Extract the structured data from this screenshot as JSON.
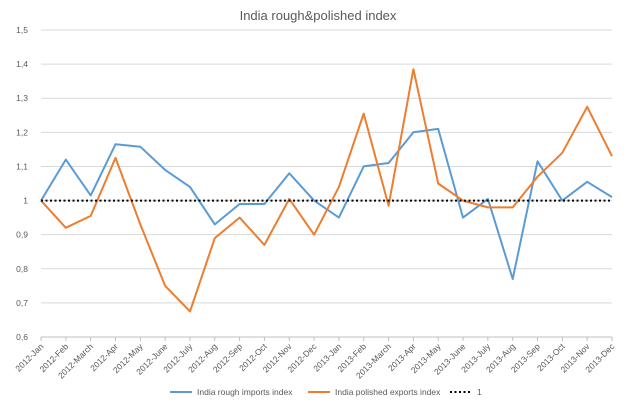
{
  "chart_data": {
    "type": "line",
    "title": "India rough&polished index",
    "categories": [
      "2012-Jan",
      "2012-Feb",
      "2012-March",
      "2012-Apr",
      "2012-May",
      "2012-June",
      "2012-July",
      "2012-Aug",
      "2012-Sep",
      "2012-Oct",
      "2012-Nov",
      "2012-Dec",
      "2013-Jan",
      "2013-Feb",
      "2013-March",
      "2013-Apr",
      "2013-May",
      "2013-June",
      "2013-July",
      "2013-Aug",
      "2013-Sep",
      "2013-Oct",
      "2013-Nov",
      "2013-Dec"
    ],
    "ylim": [
      0.6,
      1.5
    ],
    "yticks": [
      "0,6",
      "0,7",
      "0,8",
      "0,9",
      "1",
      "1,1",
      "1,2",
      "1,3",
      "1,4",
      "1,5"
    ],
    "grid": true,
    "legend_position": "bottom",
    "series": [
      {
        "name": "India rough imports index",
        "color": "#5b9bd5",
        "style": "solid",
        "values": [
          1.0,
          1.12,
          1.015,
          1.165,
          1.158,
          1.09,
          1.04,
          0.93,
          0.99,
          0.99,
          1.08,
          1.0,
          0.95,
          1.1,
          1.11,
          1.2,
          1.21,
          0.95,
          1.005,
          0.77,
          1.115,
          1.0,
          1.055,
          1.01
        ]
      },
      {
        "name": "India polished exports index",
        "color": "#ed7d31",
        "style": "solid",
        "values": [
          1.0,
          0.92,
          0.955,
          1.125,
          0.93,
          0.75,
          0.675,
          0.89,
          0.95,
          0.87,
          1.005,
          0.9,
          1.04,
          1.255,
          0.985,
          1.385,
          1.05,
          1.0,
          0.98,
          0.98,
          1.07,
          1.14,
          1.275,
          1.13
        ]
      },
      {
        "name": "1",
        "color": "#000000",
        "style": "dotted",
        "values": [
          1,
          1,
          1,
          1,
          1,
          1,
          1,
          1,
          1,
          1,
          1,
          1,
          1,
          1,
          1,
          1,
          1,
          1,
          1,
          1,
          1,
          1,
          1,
          1
        ]
      }
    ]
  }
}
